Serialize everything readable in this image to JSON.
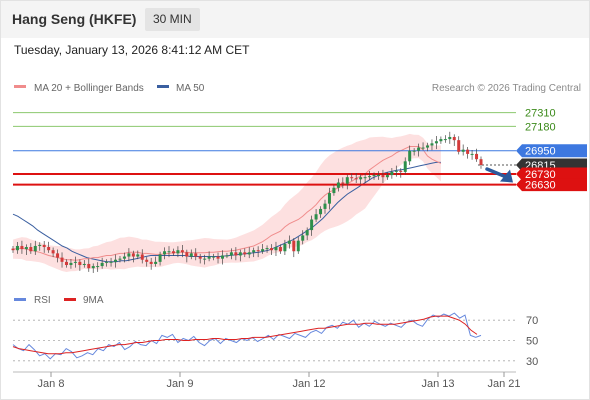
{
  "header": {
    "title": "Hang Seng (HKFE)",
    "timeframe": "30 MIN"
  },
  "datetime": "Tuesday, January 13, 2026 8:41:12 AM CET",
  "legend": {
    "bb_label": "MA 20 + Bollinger Bands",
    "ma50_label": "MA 50",
    "credit": "Research © 2026 Trading Central"
  },
  "rsi_legend": {
    "rsi_label": "RSI",
    "ma_label": "9MA"
  },
  "colors": {
    "ma20": "#f08c8c",
    "band_fill": "#fde0e0",
    "ma50": "#3a5fa0",
    "resistance": "#8cc86e",
    "pivot": "#3d78e0",
    "support": "#dd1111",
    "last": "#333333",
    "up": "#2d8f4a",
    "down": "#d43a3a",
    "rsi": "#6688dd",
    "rsi_ma": "#dd2222"
  },
  "chart_data": [
    {
      "type": "candlestick",
      "title": "Hang Seng (HKFE)",
      "timeframe": "30 MIN",
      "ylim": [
        25700,
        27420
      ],
      "x_ticks": [
        "Jan 8",
        "Jan 9",
        "Jan 12",
        "Jan 13",
        "Jan 21"
      ],
      "levels": [
        {
          "value": 27310,
          "label": "27310",
          "kind": "resistance"
        },
        {
          "value": 27180,
          "label": "27180",
          "kind": "resistance"
        },
        {
          "value": 26950,
          "label": "26950",
          "kind": "pivot"
        },
        {
          "value": 26815,
          "label": "26815",
          "kind": "last"
        },
        {
          "value": 26730,
          "label": "26730",
          "kind": "support"
        },
        {
          "value": 26630,
          "label": "26630",
          "kind": "support"
        }
      ],
      "close": [
        26010,
        26050,
        26020,
        26040,
        26000,
        26050,
        26060,
        26040,
        26010,
        25980,
        25940,
        25900,
        25870,
        25890,
        25900,
        25870,
        25880,
        25840,
        25860,
        25860,
        25890,
        25900,
        25900,
        25920,
        25930,
        25950,
        25980,
        25950,
        25970,
        25920,
        25900,
        25880,
        25900,
        25970,
        26000,
        26000,
        25980,
        26010,
        25990,
        25950,
        25980,
        25950,
        25930,
        25930,
        25950,
        25950,
        25930,
        25960,
        25960,
        25990,
        25960,
        25990,
        25970,
        25990,
        26010,
        26000,
        26020,
        26030,
        26010,
        26040,
        26000,
        26070,
        26100,
        26000,
        26100,
        26150,
        26200,
        26300,
        26350,
        26400,
        26450,
        26550,
        26600,
        26650,
        26640,
        26700,
        26690,
        26680,
        26700,
        26700,
        26710,
        26720,
        26720,
        26700,
        26720,
        26750,
        26760,
        26750,
        26850,
        26950,
        26950,
        26980,
        26980,
        27000,
        27020,
        27040,
        27060,
        27060,
        27080,
        27050,
        26940,
        26960,
        26920,
        26920,
        26870,
        26815
      ],
      "ma20": [
        26020,
        26025,
        26030,
        26020,
        26010,
        26000,
        25990,
        25975,
        25960,
        25950,
        25940,
        25930,
        25920,
        25920,
        25915,
        25920,
        25930,
        25930,
        25940,
        25940,
        25950,
        25960,
        25960,
        25970,
        25980,
        25980,
        25990,
        25990,
        25990,
        25980,
        25980,
        25975,
        25970,
        25970,
        25975,
        25980,
        25985,
        25990,
        25990,
        25990,
        25985,
        25985,
        25985,
        25985,
        25990,
        25990,
        25995,
        26000,
        26000,
        26005,
        26010,
        26020,
        26030,
        26040,
        26050,
        26070,
        26090,
        26120,
        26150,
        26170,
        26190,
        26230,
        26260,
        26280,
        26300,
        26330,
        26370,
        26400,
        26440,
        26490,
        26530,
        26560,
        26580,
        26600,
        26620,
        26640,
        26660,
        26690,
        26710,
        26730,
        26770,
        26800,
        26830,
        26860,
        26880,
        26900,
        26930,
        26950,
        26970,
        26990,
        26990,
        26990,
        26960,
        26900,
        26870,
        26850,
        26830
      ],
      "ma50": [
        26350,
        26330,
        26300,
        26270,
        26240,
        26200,
        26170,
        26140,
        26110,
        26080,
        26050,
        26030,
        26000,
        25980,
        25960,
        25940,
        25930,
        25920,
        25910,
        25900,
        25900,
        25900,
        25910,
        25910,
        25920,
        25930,
        25940,
        25950,
        25960,
        25960,
        25960,
        25960,
        25960,
        25960,
        25960,
        25960,
        25950,
        25950,
        25950,
        25950,
        25950,
        25950,
        25950,
        25955,
        25960,
        25965,
        25970,
        25975,
        25980,
        25985,
        25990,
        26000,
        26010,
        26030,
        26050,
        26070,
        26090,
        26110,
        26140,
        26170,
        26200,
        26230,
        26270,
        26310,
        26360,
        26410,
        26460,
        26500,
        26540,
        26570,
        26600,
        26630,
        26660,
        26690,
        26710,
        26730,
        26745,
        26755,
        26765,
        26770,
        26780,
        26790,
        26800,
        26810,
        26820,
        26830,
        26840,
        26840
      ],
      "bb_width": [
        90,
        100,
        110,
        100,
        95,
        90,
        100,
        110,
        120,
        110,
        100,
        95,
        100,
        110,
        120,
        130,
        140,
        150,
        150,
        140,
        130,
        130,
        120,
        120,
        110,
        100,
        100,
        110,
        120,
        130,
        140,
        130,
        120,
        110,
        110,
        120,
        130,
        140,
        150,
        160,
        170,
        180,
        200,
        220,
        240,
        260,
        280,
        300,
        320,
        340,
        350,
        360,
        360,
        350,
        340,
        330,
        300,
        260,
        220,
        180,
        150,
        130,
        120,
        110,
        110,
        120,
        140,
        170
      ],
      "forecast": {
        "from": 26815,
        "to": 26650
      }
    },
    {
      "type": "line",
      "title": "RSI",
      "ylim": [
        20,
        80
      ],
      "y_ticks": [
        30,
        50,
        70
      ],
      "series": [
        {
          "name": "RSI",
          "values": [
            46,
            42,
            40,
            46,
            41,
            35,
            37,
            32,
            37,
            36,
            42,
            39,
            33,
            35,
            38,
            36,
            42,
            40,
            46,
            44,
            48,
            41,
            44,
            49,
            46,
            45,
            50,
            47,
            55,
            53,
            56,
            48,
            52,
            50,
            54,
            48,
            45,
            50,
            52,
            47,
            52,
            50,
            48,
            52,
            50,
            53,
            49,
            52,
            55,
            51,
            56,
            54,
            52,
            57,
            55,
            53,
            58,
            60,
            57,
            63,
            65,
            62,
            68,
            66,
            70,
            63,
            67,
            64,
            69,
            66,
            64,
            67,
            65,
            63,
            68,
            70,
            66,
            64,
            71,
            75,
            73,
            76,
            74,
            77,
            72,
            75,
            55,
            53,
            55
          ]
        },
        {
          "name": "9MA",
          "values": [
            44,
            42,
            41,
            40,
            39,
            38,
            37,
            37,
            37,
            38,
            38,
            39,
            40,
            41,
            42,
            43,
            44,
            45,
            46,
            46,
            47,
            48,
            48,
            49,
            50,
            50,
            51,
            51,
            51,
            50,
            50,
            51,
            51,
            51,
            52,
            52,
            51,
            51,
            51,
            52,
            52,
            53,
            53,
            53,
            54,
            55,
            56,
            57,
            58,
            59,
            60,
            61,
            62,
            62,
            63,
            64,
            65,
            66,
            66,
            66,
            67,
            67,
            66,
            66,
            66,
            66,
            67,
            68,
            69,
            70,
            71,
            73,
            74,
            74,
            74,
            72,
            70,
            66,
            60,
            56
          ]
        }
      ]
    }
  ]
}
